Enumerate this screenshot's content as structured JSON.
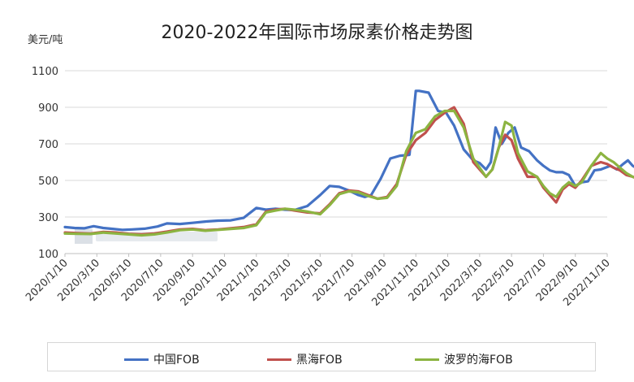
{
  "chart_data": {
    "type": "line",
    "title": "2020-2022年国际市场尿素价格走势图",
    "ylabel": "美元/吨",
    "xlabel": "",
    "ylim": [
      100,
      1100
    ],
    "yticks": [
      100,
      300,
      500,
      700,
      900,
      1100
    ],
    "categories": [
      "2020/1/10",
      "2020/3/10",
      "2020/5/10",
      "2020/7/10",
      "2020/9/10",
      "2020/11/10",
      "2021/1/10",
      "2021/3/10",
      "2021/5/10",
      "2021/7/10",
      "2021/9/10",
      "2021/11/10",
      "2022/1/10",
      "2022/3/10",
      "2022/5/10",
      "2022/7/10",
      "2022/9/10",
      "2022/11/10"
    ],
    "grid": true,
    "legend_position": "bottom",
    "series": [
      {
        "name": "中国FOB",
        "color": "#4472c4",
        "x": [
          0,
          0.3,
          0.6,
          0.9,
          1.2,
          1.5,
          1.8,
          2.1,
          2.5,
          2.9,
          3.2,
          3.6,
          4.0,
          4.4,
          4.8,
          5.2,
          5.6,
          6.0,
          6.3,
          6.6,
          6.9,
          7.2,
          7.6,
          8.0,
          8.3,
          8.6,
          8.9,
          9.2,
          9.4,
          9.6,
          9.9,
          10.2,
          10.5,
          10.8,
          11.0,
          11.1,
          11.4,
          11.7,
          11.95,
          12.2,
          12.5,
          12.8,
          13.0,
          13.2,
          13.35,
          13.5,
          13.7,
          13.9,
          14.1,
          14.3,
          14.55,
          14.8,
          15.0,
          15.2,
          15.4,
          15.6,
          15.8,
          16.0,
          16.2,
          16.4,
          16.6,
          16.8,
          16.95,
          17.1,
          17.3,
          17.5,
          17.65,
          17.8,
          17.95
        ],
        "values": [
          245,
          240,
          238,
          250,
          240,
          235,
          230,
          232,
          236,
          248,
          265,
          262,
          268,
          275,
          280,
          282,
          295,
          350,
          340,
          345,
          340,
          338,
          360,
          420,
          470,
          465,
          445,
          420,
          410,
          420,
          510,
          620,
          635,
          640,
          990,
          990,
          980,
          880,
          870,
          800,
          670,
          610,
          595,
          560,
          600,
          790,
          700,
          760,
          790,
          680,
          660,
          610,
          580,
          555,
          545,
          545,
          530,
          470,
          490,
          495,
          555,
          560,
          570,
          580,
          560,
          590,
          610,
          580,
          565
        ],
        "dx": [
          0,
          0.3,
          0.6,
          0.9,
          1.2,
          1.5,
          1.8,
          2.1,
          2.5,
          2.9,
          3.2,
          3.6,
          4.0,
          4.4,
          4.8,
          5.2,
          5.6,
          6.0,
          6.3,
          6.6,
          6.9,
          7.2,
          7.6,
          8.0,
          8.3,
          8.6,
          8.9,
          9.2,
          9.4,
          9.6,
          9.9,
          10.2,
          10.5,
          10.8,
          11.0,
          11.1,
          11.4,
          11.7,
          11.95,
          12.2,
          12.5,
          12.8,
          13.0,
          13.2,
          13.35,
          13.5,
          13.7,
          13.9,
          14.1,
          14.3,
          14.55,
          14.8,
          15.0,
          15.2,
          15.4,
          15.6,
          15.8,
          16.0,
          16.2,
          16.4,
          16.6,
          16.8,
          16.95,
          17.1,
          17.3,
          17.5,
          17.65,
          17.8,
          17.95
        ]
      },
      {
        "name": "黑海FOB",
        "color": "#c0504d",
        "x": [
          0,
          0.4,
          0.8,
          1.2,
          1.6,
          2.0,
          2.4,
          2.8,
          3.2,
          3.6,
          4.0,
          4.4,
          4.8,
          5.2,
          5.6,
          6.0,
          6.3,
          6.6,
          6.9,
          7.2,
          7.6,
          8.0,
          8.3,
          8.6,
          8.9,
          9.2,
          9.5,
          9.8,
          10.1,
          10.4,
          10.7,
          11.0,
          11.3,
          11.6,
          11.9,
          12.2,
          12.5,
          12.8,
          13.0,
          13.2,
          13.4,
          13.6,
          13.8,
          14.0,
          14.2,
          14.5,
          14.8,
          15.0,
          15.2,
          15.4,
          15.6,
          15.8,
          16.0,
          16.2,
          16.5,
          16.8,
          17.0,
          17.2,
          17.4,
          17.6,
          17.8,
          17.95
        ],
        "values": [
          215,
          212,
          210,
          218,
          215,
          208,
          205,
          210,
          220,
          232,
          235,
          228,
          232,
          238,
          245,
          260,
          330,
          340,
          345,
          335,
          325,
          320,
          370,
          430,
          445,
          440,
          420,
          400,
          410,
          480,
          640,
          720,
          760,
          830,
          870,
          900,
          810,
          600,
          560,
          520,
          560,
          680,
          750,
          720,
          620,
          520,
          520,
          460,
          420,
          380,
          450,
          480,
          460,
          500,
          580,
          600,
          590,
          570,
          555,
          530,
          520,
          510
        ]
      },
      {
        "name": "波罗的海FOB",
        "color": "#8cb441",
        "x": [
          0,
          0.4,
          0.8,
          1.2,
          1.6,
          2.0,
          2.4,
          2.8,
          3.2,
          3.6,
          4.0,
          4.4,
          4.8,
          5.2,
          5.6,
          6.0,
          6.3,
          6.6,
          6.9,
          7.2,
          7.6,
          8.0,
          8.3,
          8.6,
          8.9,
          9.2,
          9.5,
          9.8,
          10.1,
          10.4,
          10.7,
          11.0,
          11.3,
          11.6,
          11.9,
          12.2,
          12.5,
          12.8,
          13.0,
          13.2,
          13.4,
          13.6,
          13.8,
          14.0,
          14.2,
          14.5,
          14.8,
          15.0,
          15.2,
          15.4,
          15.6,
          15.8,
          16.0,
          16.2,
          16.5,
          16.8,
          17.0,
          17.2,
          17.4,
          17.6,
          17.8,
          17.95
        ],
        "values": [
          210,
          208,
          207,
          215,
          210,
          205,
          200,
          205,
          215,
          228,
          232,
          225,
          230,
          235,
          240,
          255,
          325,
          335,
          345,
          340,
          330,
          315,
          365,
          425,
          440,
          435,
          415,
          400,
          405,
          470,
          660,
          760,
          780,
          850,
          880,
          880,
          790,
          620,
          570,
          520,
          560,
          680,
          820,
          800,
          650,
          550,
          520,
          470,
          430,
          410,
          460,
          490,
          470,
          490,
          580,
          650,
          620,
          600,
          570,
          540,
          520,
          510
        ]
      }
    ]
  }
}
